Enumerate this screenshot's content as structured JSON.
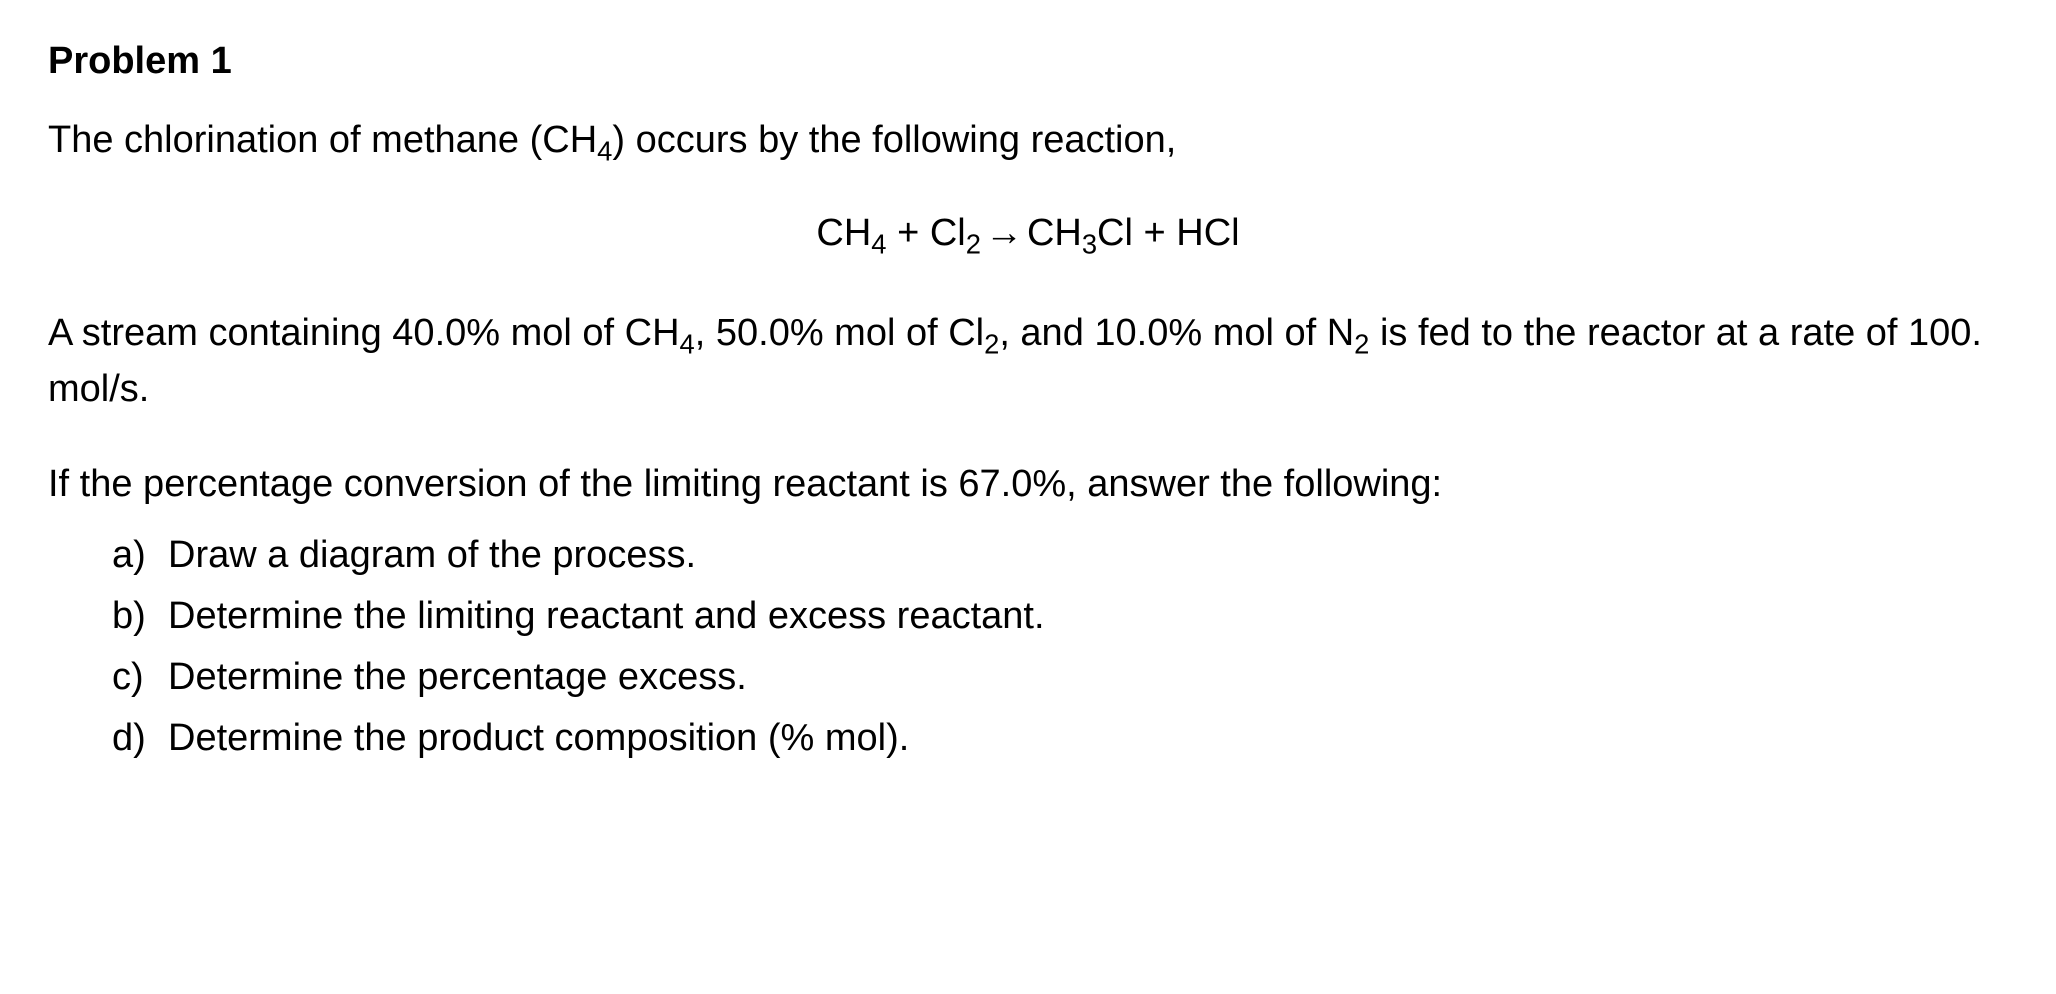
{
  "problem": {
    "title": "Problem 1",
    "intro_prefix": "The chlorination of methane (CH",
    "intro_sub1": "4",
    "intro_suffix": ") occurs by the following reaction,",
    "equation": {
      "r1_base": "CH",
      "r1_sub": "4",
      "plus1": " + ",
      "r2_base": "Cl",
      "r2_sub": "2",
      "arrow": " → ",
      "p1_base": "CH",
      "p1_sub": "3",
      "p1_suffix": "Cl",
      "plus2": " + ",
      "p2": "HCl"
    },
    "feed": {
      "part1": "A stream containing 40.0% mol of CH",
      "sub1": "4",
      "part2": ", 50.0% mol of Cl",
      "sub2": "2",
      "part3": ", and 10.0% mol of N",
      "sub3": "2",
      "part4": " is fed to the reactor at a rate of 100. mol/s."
    },
    "conversion_text": "If the percentage conversion of the limiting reactant is 67.0%, answer the following:",
    "questions": {
      "a": {
        "letter": "a)",
        "text": "Draw a diagram of the process."
      },
      "b": {
        "letter": "b)",
        "text": "Determine the limiting reactant and excess reactant."
      },
      "c": {
        "letter": "c)",
        "text": "Determine the percentage excess."
      },
      "d": {
        "letter": "d)",
        "text": "Determine the product composition (% mol)."
      }
    }
  },
  "style": {
    "background_color": "#ffffff",
    "text_color": "#000000",
    "title_fontsize": 38,
    "body_fontsize": 38,
    "title_weight": "bold",
    "font_family": "Arial"
  }
}
